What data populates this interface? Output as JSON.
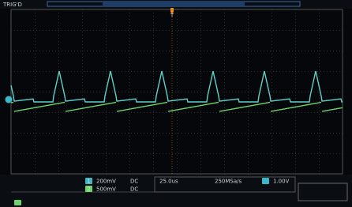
{
  "status": "TRIG'D",
  "trigger_marker": "T",
  "channels": [
    {
      "label": "1",
      "scale": "200mV",
      "coupling": "DC"
    },
    {
      "label": "2",
      "scale": "500mV",
      "coupling": "DC"
    }
  ],
  "timebase": "25.0us",
  "trigger_level": "1.00V",
  "sample_rate": "250MSa/s"
}
